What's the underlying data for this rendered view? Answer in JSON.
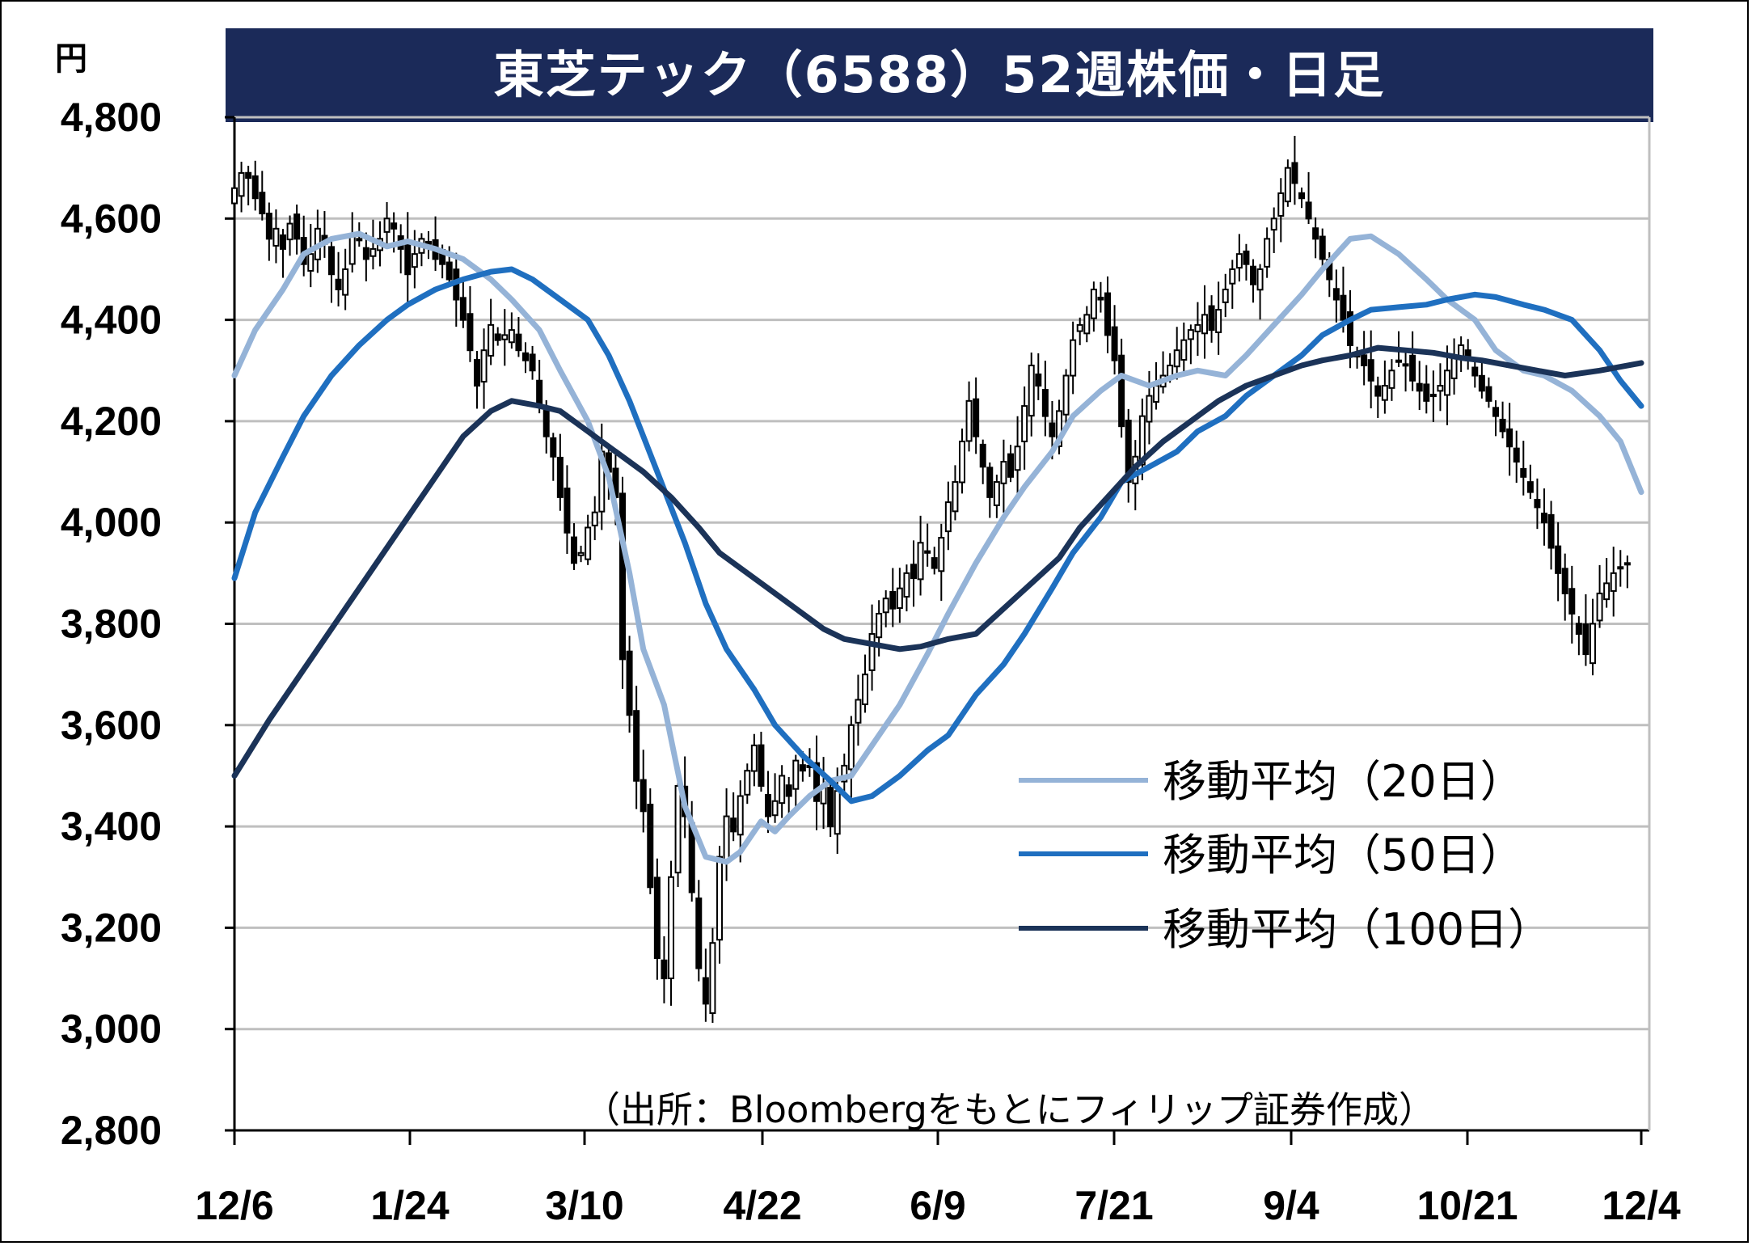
{
  "header": {
    "title": "東芝テック（6588）52週株価・日足",
    "y_unit": "円"
  },
  "source_note": "（出所：Bloombergをもとにフィリップ証券作成）",
  "colors": {
    "title_bg": "#1b2a59",
    "ma20": "#95b3d7",
    "ma50": "#1f6fc0",
    "ma100": "#1b3358",
    "grid": "#bfbfbf"
  },
  "chart_data": {
    "type": "candlestick",
    "x_tick_labels": [
      "12/6",
      "1/24",
      "3/10",
      "4/22",
      "6/9",
      "7/21",
      "9/4",
      "10/21",
      "12/4"
    ],
    "y_tick_labels": [
      "2,800",
      "3,000",
      "3,200",
      "3,400",
      "3,600",
      "3,800",
      "4,000",
      "4,200",
      "4,400",
      "4,600",
      "4,800"
    ],
    "ylim": [
      2800,
      4800
    ],
    "grid": true,
    "legend_position": "right-middle",
    "series": [
      {
        "name": "移動平均（20日）",
        "color": "#95b3d7",
        "points": [
          [
            0,
            4290
          ],
          [
            3,
            4380
          ],
          [
            7,
            4460
          ],
          [
            10,
            4530
          ],
          [
            14,
            4560
          ],
          [
            18,
            4570
          ],
          [
            22,
            4545
          ],
          [
            25,
            4555
          ],
          [
            29,
            4540
          ],
          [
            33,
            4520
          ],
          [
            37,
            4480
          ],
          [
            40,
            4440
          ],
          [
            44,
            4380
          ],
          [
            47,
            4300
          ],
          [
            51,
            4200
          ],
          [
            54,
            4090
          ],
          [
            57,
            3900
          ],
          [
            59,
            3750
          ],
          [
            62,
            3640
          ],
          [
            65,
            3440
          ],
          [
            68,
            3340
          ],
          [
            71,
            3330
          ],
          [
            73,
            3350
          ],
          [
            76,
            3410
          ],
          [
            78,
            3390
          ],
          [
            80,
            3420
          ],
          [
            83,
            3460
          ],
          [
            86,
            3490
          ],
          [
            89,
            3500
          ],
          [
            92,
            3560
          ],
          [
            96,
            3640
          ],
          [
            100,
            3740
          ],
          [
            103,
            3820
          ],
          [
            107,
            3920
          ],
          [
            111,
            4010
          ],
          [
            114,
            4070
          ],
          [
            118,
            4140
          ],
          [
            121,
            4210
          ],
          [
            125,
            4260
          ],
          [
            128,
            4290
          ],
          [
            132,
            4270
          ],
          [
            136,
            4290
          ],
          [
            139,
            4300
          ],
          [
            143,
            4290
          ],
          [
            146,
            4330
          ],
          [
            150,
            4390
          ],
          [
            154,
            4450
          ],
          [
            157,
            4500
          ],
          [
            161,
            4560
          ],
          [
            164,
            4565
          ],
          [
            168,
            4530
          ],
          [
            172,
            4480
          ],
          [
            175,
            4440
          ],
          [
            179,
            4400
          ],
          [
            182,
            4340
          ],
          [
            186,
            4300
          ],
          [
            189,
            4290
          ],
          [
            193,
            4260
          ],
          [
            197,
            4210
          ],
          [
            200,
            4160
          ],
          [
            203,
            4060
          ]
        ]
      },
      {
        "name": "移動平均（50日）",
        "color": "#1f6fc0",
        "points": [
          [
            0,
            3890
          ],
          [
            3,
            4020
          ],
          [
            7,
            4130
          ],
          [
            10,
            4210
          ],
          [
            14,
            4290
          ],
          [
            18,
            4350
          ],
          [
            22,
            4400
          ],
          [
            25,
            4430
          ],
          [
            29,
            4460
          ],
          [
            33,
            4480
          ],
          [
            37,
            4495
          ],
          [
            40,
            4500
          ],
          [
            43,
            4480
          ],
          [
            47,
            4440
          ],
          [
            51,
            4400
          ],
          [
            54,
            4330
          ],
          [
            57,
            4240
          ],
          [
            61,
            4100
          ],
          [
            65,
            3960
          ],
          [
            68,
            3840
          ],
          [
            71,
            3750
          ],
          [
            75,
            3670
          ],
          [
            78,
            3600
          ],
          [
            82,
            3540
          ],
          [
            86,
            3490
          ],
          [
            89,
            3450
          ],
          [
            92,
            3460
          ],
          [
            96,
            3500
          ],
          [
            100,
            3550
          ],
          [
            103,
            3580
          ],
          [
            107,
            3660
          ],
          [
            111,
            3720
          ],
          [
            114,
            3780
          ],
          [
            118,
            3870
          ],
          [
            121,
            3940
          ],
          [
            125,
            4010
          ],
          [
            128,
            4080
          ],
          [
            132,
            4110
          ],
          [
            136,
            4140
          ],
          [
            139,
            4180
          ],
          [
            143,
            4210
          ],
          [
            146,
            4250
          ],
          [
            150,
            4290
          ],
          [
            154,
            4330
          ],
          [
            157,
            4370
          ],
          [
            161,
            4400
          ],
          [
            164,
            4420
          ],
          [
            168,
            4425
          ],
          [
            172,
            4430
          ],
          [
            175,
            4440
          ],
          [
            179,
            4450
          ],
          [
            182,
            4445
          ],
          [
            186,
            4430
          ],
          [
            189,
            4420
          ],
          [
            193,
            4400
          ],
          [
            197,
            4340
          ],
          [
            200,
            4280
          ],
          [
            203,
            4230
          ]
        ]
      },
      {
        "name": "移動平均（100日）",
        "color": "#1b3358",
        "points": [
          [
            0,
            3500
          ],
          [
            5,
            3610
          ],
          [
            10,
            3710
          ],
          [
            15,
            3810
          ],
          [
            20,
            3910
          ],
          [
            25,
            4010
          ],
          [
            29,
            4090
          ],
          [
            33,
            4170
          ],
          [
            37,
            4220
          ],
          [
            40,
            4240
          ],
          [
            44,
            4230
          ],
          [
            47,
            4220
          ],
          [
            51,
            4180
          ],
          [
            55,
            4140
          ],
          [
            59,
            4100
          ],
          [
            63,
            4050
          ],
          [
            67,
            3990
          ],
          [
            70,
            3940
          ],
          [
            74,
            3900
          ],
          [
            77,
            3870
          ],
          [
            81,
            3830
          ],
          [
            85,
            3790
          ],
          [
            88,
            3770
          ],
          [
            92,
            3760
          ],
          [
            96,
            3750
          ],
          [
            99,
            3755
          ],
          [
            103,
            3770
          ],
          [
            107,
            3780
          ],
          [
            111,
            3830
          ],
          [
            115,
            3880
          ],
          [
            119,
            3930
          ],
          [
            122,
            3990
          ],
          [
            126,
            4050
          ],
          [
            130,
            4110
          ],
          [
            134,
            4160
          ],
          [
            138,
            4200
          ],
          [
            142,
            4240
          ],
          [
            146,
            4270
          ],
          [
            150,
            4290
          ],
          [
            154,
            4310
          ],
          [
            157,
            4320
          ],
          [
            161,
            4330
          ],
          [
            165,
            4345
          ],
          [
            169,
            4340
          ],
          [
            173,
            4335
          ],
          [
            177,
            4325
          ],
          [
            180,
            4320
          ],
          [
            184,
            4310
          ],
          [
            188,
            4300
          ],
          [
            192,
            4290
          ],
          [
            197,
            4300
          ],
          [
            203,
            4315
          ]
        ]
      }
    ],
    "candles": {
      "description": "Daily OHLC candlesticks, day index 0..203",
      "closes": [
        4660,
        4690,
        4680,
        4640,
        4610,
        4560,
        4580,
        4540,
        4590,
        4560,
        4510,
        4530,
        4580,
        4550,
        4490,
        4460,
        4500,
        4570,
        4560,
        4520,
        4540,
        4560,
        4600,
        4580,
        4540,
        4490,
        4530,
        4560,
        4550,
        4520,
        4510,
        4480,
        4440,
        4400,
        4340,
        4270,
        4340,
        4390,
        4360,
        4370,
        4380,
        4340,
        4320,
        4300,
        4230,
        4170,
        4130,
        4050,
        3980,
        3920,
        3940,
        3990,
        4020,
        4140,
        4100,
        4050,
        3730,
        3620,
        3490,
        3430,
        3280,
        3140,
        3100,
        3300,
        3480,
        3420,
        3270,
        3120,
        3050,
        3170,
        3340,
        3420,
        3390,
        3460,
        3510,
        3560,
        3480,
        3420,
        3450,
        3500,
        3460,
        3530,
        3510,
        3520,
        3450,
        3480,
        3400,
        3470,
        3520,
        3600,
        3650,
        3700,
        3780,
        3820,
        3850,
        3830,
        3870,
        3900,
        3890,
        3960,
        3940,
        3910,
        3970,
        4040,
        4080,
        4160,
        4240,
        4170,
        4110,
        4050,
        4080,
        4120,
        4090,
        4150,
        4230,
        4310,
        4270,
        4210,
        4170,
        4220,
        4290,
        4360,
        4390,
        4410,
        4460,
        4440,
        4370,
        4320,
        4190,
        4080,
        4130,
        4210,
        4250,
        4270,
        4290,
        4310,
        4340,
        4360,
        4380,
        4390,
        4410,
        4380,
        4420,
        4460,
        4500,
        4530,
        4510,
        4470,
        4500,
        4560,
        4600,
        4650,
        4700,
        4670,
        4640,
        4600,
        4560,
        4520,
        4480,
        4440,
        4400,
        4350,
        4330,
        4310,
        4280,
        4250,
        4270,
        4300,
        4320,
        4310,
        4280,
        4260,
        4240,
        4250,
        4270,
        4300,
        4330,
        4350,
        4320,
        4290,
        4260,
        4240,
        4210,
        4180,
        4150,
        4120,
        4090,
        4060,
        4030,
        4000,
        3950,
        3900,
        3860,
        3820,
        3780,
        3740,
        3800,
        3860,
        3880,
        3900,
        3910,
        3920
      ],
      "note": "Values estimated from chart; drawn with open/high/low derived in script"
    }
  },
  "legend": {
    "ma20": "移動平均（20日）",
    "ma50": "移動平均（50日）",
    "ma100": "移動平均（100日）"
  }
}
